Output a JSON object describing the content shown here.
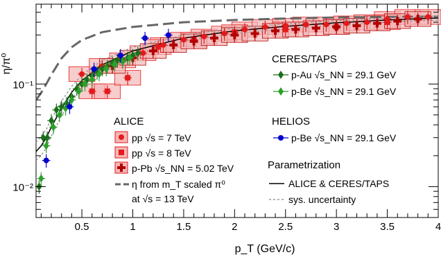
{
  "chart_data": {
    "type": "scatter",
    "title": "",
    "xlabel": "p_T (GeV/c)",
    "ylabel": "η/π⁰",
    "xlim": [
      0.05,
      4.0
    ],
    "ylim": [
      0.005,
      0.6
    ],
    "yscale": "log",
    "x_ticks": [
      0.5,
      1,
      1.5,
      2,
      2.5,
      3,
      3.5,
      4
    ],
    "x_tick_labels": [
      "0.5",
      "1",
      "1.5",
      "2",
      "2.5",
      "3",
      "3.5",
      "4"
    ],
    "y_ticks": [
      0.01,
      0.1
    ],
    "y_tick_labels": [
      "10⁻²",
      "10⁻¹"
    ],
    "grid": false,
    "legend_groups": [
      {
        "heading": "ALICE",
        "placement": "middle-left"
      },
      {
        "heading": "CERES/TAPS",
        "placement": "top-right"
      },
      {
        "heading": "HELIOS",
        "placement": "middle-right"
      },
      {
        "heading": "Parametrization",
        "placement": "bottom-right"
      }
    ],
    "series": [
      {
        "name": "pp √s = 7 TeV",
        "group": "ALICE",
        "marker": "circle",
        "color": "#e31a1c",
        "box_fill": "#f4b6b6",
        "x": [
          0.5,
          0.7,
          0.9,
          1.1,
          1.3,
          1.5,
          1.7,
          1.9,
          2.1,
          2.3,
          2.5,
          2.7,
          2.9,
          3.1,
          3.3,
          3.5,
          3.7,
          3.9
        ],
        "y": [
          0.125,
          0.15,
          0.17,
          0.2,
          0.24,
          0.27,
          0.29,
          0.31,
          0.34,
          0.36,
          0.37,
          0.38,
          0.38,
          0.39,
          0.4,
          0.43,
          0.45,
          0.45
        ]
      },
      {
        "name": "pp √s = 8 TeV",
        "group": "ALICE",
        "marker": "square",
        "color": "#e31a1c",
        "box_fill": "#f4b6b6",
        "x": [
          0.6,
          0.75,
          0.95,
          1.25,
          1.6,
          2.0,
          2.5,
          3.0,
          3.5
        ],
        "y": [
          0.085,
          0.085,
          0.115,
          0.23,
          0.27,
          0.32,
          0.34,
          0.36,
          0.4
        ]
      },
      {
        "name": "p-Pb √s_NN = 5.02 TeV",
        "group": "ALICE",
        "marker": "cross",
        "color": "#b30000",
        "box_fill": "#f4b6b6",
        "x": [
          0.8,
          1.0,
          1.2,
          1.4,
          1.6,
          1.8,
          2.0,
          2.2,
          2.4,
          2.6,
          2.8,
          3.0,
          3.2,
          3.4,
          3.6,
          3.8
        ],
        "y": [
          0.15,
          0.18,
          0.21,
          0.24,
          0.26,
          0.28,
          0.3,
          0.31,
          0.33,
          0.34,
          0.35,
          0.36,
          0.37,
          0.39,
          0.41,
          0.43
        ]
      },
      {
        "name": "p-Au √s_NN = 29.1 GeV",
        "group": "CERES/TAPS",
        "marker": "diamond",
        "color": "#1b6e1b",
        "x": [
          0.08,
          0.12,
          0.16,
          0.2,
          0.25,
          0.3,
          0.35,
          0.4,
          0.45,
          0.5,
          0.55,
          0.6,
          0.65,
          0.7,
          0.75,
          0.8,
          0.85,
          0.9,
          0.95,
          1.0,
          1.05
        ],
        "y": [
          0.01,
          0.03,
          0.03,
          0.044,
          0.056,
          0.06,
          0.065,
          0.075,
          0.09,
          0.1,
          0.11,
          0.12,
          0.13,
          0.14,
          0.15,
          0.16,
          0.17,
          0.17,
          0.18,
          0.19,
          0.2
        ]
      },
      {
        "name": "p-Be √s_NN = 29.1 GeV",
        "group": "CERES/TAPS",
        "marker": "diamond",
        "color": "#2ca02c",
        "x": [
          0.1,
          0.15,
          0.22,
          0.28,
          0.34,
          0.4,
          0.47,
          0.53,
          0.6,
          0.67,
          0.74,
          0.82,
          0.9,
          0.97
        ],
        "y": [
          0.012,
          0.025,
          0.038,
          0.05,
          0.058,
          0.07,
          0.085,
          0.1,
          0.11,
          0.125,
          0.14,
          0.155,
          0.165,
          0.18
        ]
      },
      {
        "name": "p-Be √s_NN = 29.1 GeV",
        "group": "HELIOS",
        "marker": "circle",
        "color": "#0000cc",
        "x": [
          0.15,
          0.38,
          0.62,
          0.88,
          1.12,
          1.35
        ],
        "y": [
          0.018,
          0.06,
          0.14,
          0.19,
          0.28,
          0.3
        ]
      }
    ],
    "lines": [
      {
        "name": "η from m_T scaled π⁰ at √s = 13 TeV",
        "style": "dashed",
        "color": "#666666",
        "width": 3,
        "x": [
          0.05,
          0.1,
          0.15,
          0.2,
          0.3,
          0.4,
          0.5,
          0.7,
          1.0,
          1.5,
          2.0,
          2.5,
          3.0,
          3.5,
          4.0
        ],
        "y": [
          0.07,
          0.082,
          0.1,
          0.123,
          0.178,
          0.228,
          0.268,
          0.32,
          0.36,
          0.4,
          0.42,
          0.435,
          0.445,
          0.45,
          0.455
        ]
      },
      {
        "name": "ALICE & CERES/TAPS",
        "style": "solid",
        "color": "#000000",
        "width": 1.5,
        "x": [
          0.05,
          0.1,
          0.15,
          0.2,
          0.3,
          0.4,
          0.5,
          0.7,
          1.0,
          1.5,
          2.0,
          2.5,
          3.0,
          3.5,
          4.0
        ],
        "y": [
          0.022,
          0.025,
          0.03,
          0.038,
          0.058,
          0.083,
          0.108,
          0.154,
          0.21,
          0.28,
          0.33,
          0.365,
          0.395,
          0.42,
          0.44
        ]
      },
      {
        "name": "sys. uncertainty",
        "style": "dotted",
        "color": "#999999",
        "width": 1.5,
        "x": [
          0.05,
          0.1,
          0.15,
          0.2,
          0.3,
          0.4,
          0.5,
          0.7,
          1.0,
          1.5,
          2.0,
          2.5,
          3.0,
          3.5,
          4.0
        ],
        "y": [
          0.027,
          0.031,
          0.036,
          0.046,
          0.068,
          0.095,
          0.122,
          0.17,
          0.228,
          0.3,
          0.35,
          0.385,
          0.415,
          0.44,
          0.46
        ]
      },
      {
        "name": "sys. uncertainty",
        "style": "dotted",
        "color": "#999999",
        "width": 1.5,
        "x": [
          0.05,
          0.1,
          0.15,
          0.2,
          0.3,
          0.4,
          0.5,
          0.7,
          1.0,
          1.5,
          2.0,
          2.5,
          3.0,
          3.5,
          4.0
        ],
        "y": [
          0.018,
          0.02,
          0.024,
          0.031,
          0.049,
          0.071,
          0.094,
          0.138,
          0.192,
          0.26,
          0.31,
          0.345,
          0.375,
          0.4,
          0.42
        ]
      }
    ],
    "legend": {
      "alice_heading": "ALICE",
      "pp7": "pp √s = 7 TeV",
      "pp8": "pp √s = 8 TeV",
      "ppb": "p-Pb √s_NN = 5.02 TeV",
      "mt_line1": "η from m_T scaled π⁰",
      "mt_line2": "at √s = 13 TeV",
      "ceres_heading": "CERES/TAPS",
      "pau": "p-Au √s_NN = 29.1 GeV",
      "pbe": "p-Be √s_NN = 29.1 GeV",
      "helios_heading": "HELIOS",
      "helios_pbe": "p-Be √s_NN = 29.1 GeV",
      "param_heading": "Parametrization",
      "param_line": "ALICE & CERES/TAPS",
      "sys_line": "sys. uncertainty"
    }
  }
}
